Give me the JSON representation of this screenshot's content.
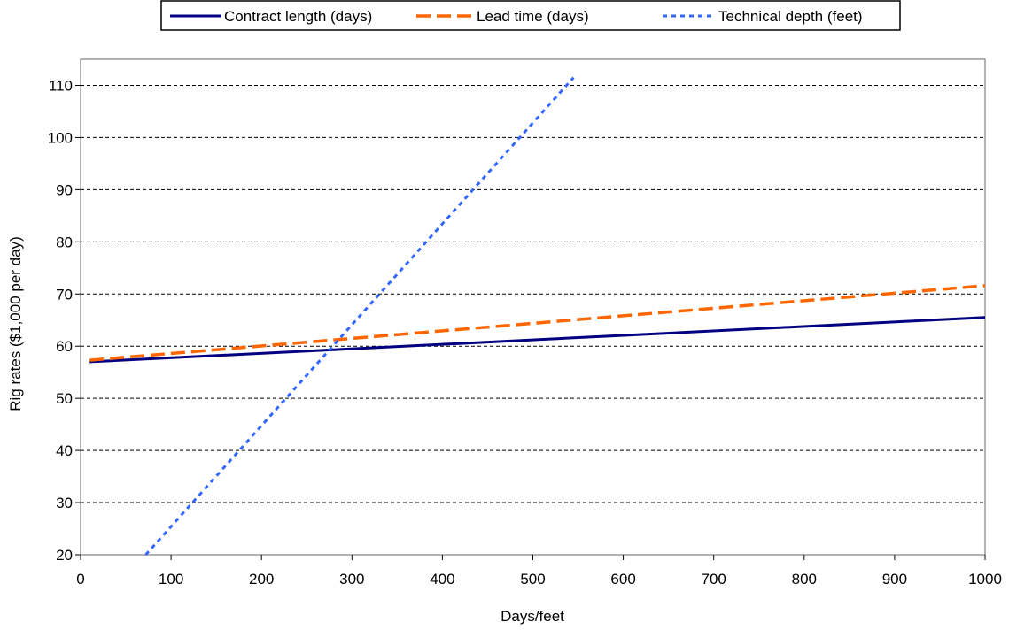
{
  "chart_data": {
    "type": "line",
    "xlabel": "Days/feet",
    "ylabel": "Rig rates ($1,000 per day)",
    "xlim": [
      0,
      1000
    ],
    "ylim": [
      20,
      115
    ],
    "xticks": [
      0,
      100,
      200,
      300,
      400,
      500,
      600,
      700,
      800,
      900,
      1000
    ],
    "yticks": [
      20,
      30,
      40,
      50,
      60,
      70,
      80,
      90,
      100,
      110
    ],
    "grid": "horizontal dashed",
    "legend_position": "top",
    "series": [
      {
        "name": "Contract length (days)",
        "color": "#000080",
        "style": "solid",
        "x": [
          10,
          1000
        ],
        "y": [
          57.0,
          65.5
        ]
      },
      {
        "name": "Lead time (days)",
        "color": "#ff6600",
        "style": "dashed",
        "x": [
          10,
          1000
        ],
        "y": [
          57.3,
          71.6
        ]
      },
      {
        "name": "Technical depth (feet)",
        "color": "#3366ff",
        "style": "dotted",
        "x": [
          72,
          545
        ],
        "y": [
          20,
          111.5
        ]
      }
    ]
  }
}
